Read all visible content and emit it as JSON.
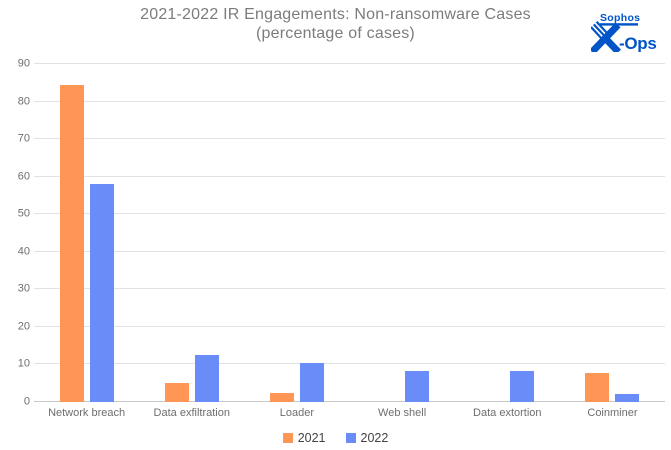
{
  "header": {
    "title": "2021-2022 IR Engagements: Non-ransomware Cases",
    "subtitle": "(percentage of cases)"
  },
  "logo": {
    "brand": "Sophos",
    "suffix": "-Ops",
    "color": "#0054c8"
  },
  "chart_data": {
    "type": "bar",
    "title": "2021-2022 IR Engagements: Non-ransomware Cases",
    "subtitle": "(percentage of cases)",
    "categories": [
      "Network breach",
      "Data exfiltration",
      "Loader",
      "Web shell",
      "Data extortion",
      "Coinminer"
    ],
    "series": [
      {
        "name": "2021",
        "color": "#ff9655",
        "values": [
          84.5,
          5,
          2.5,
          0,
          0,
          7.8
        ]
      },
      {
        "name": "2022",
        "color": "#6a8cf8",
        "values": [
          58,
          12.5,
          10.5,
          8.3,
          8.3,
          2.2
        ]
      }
    ],
    "xlabel": "",
    "ylabel": "",
    "ylim": [
      0,
      90
    ],
    "yticks": [
      0,
      10,
      20,
      30,
      40,
      50,
      60,
      70,
      80,
      90
    ],
    "grid": true,
    "legend_position": "bottom"
  }
}
